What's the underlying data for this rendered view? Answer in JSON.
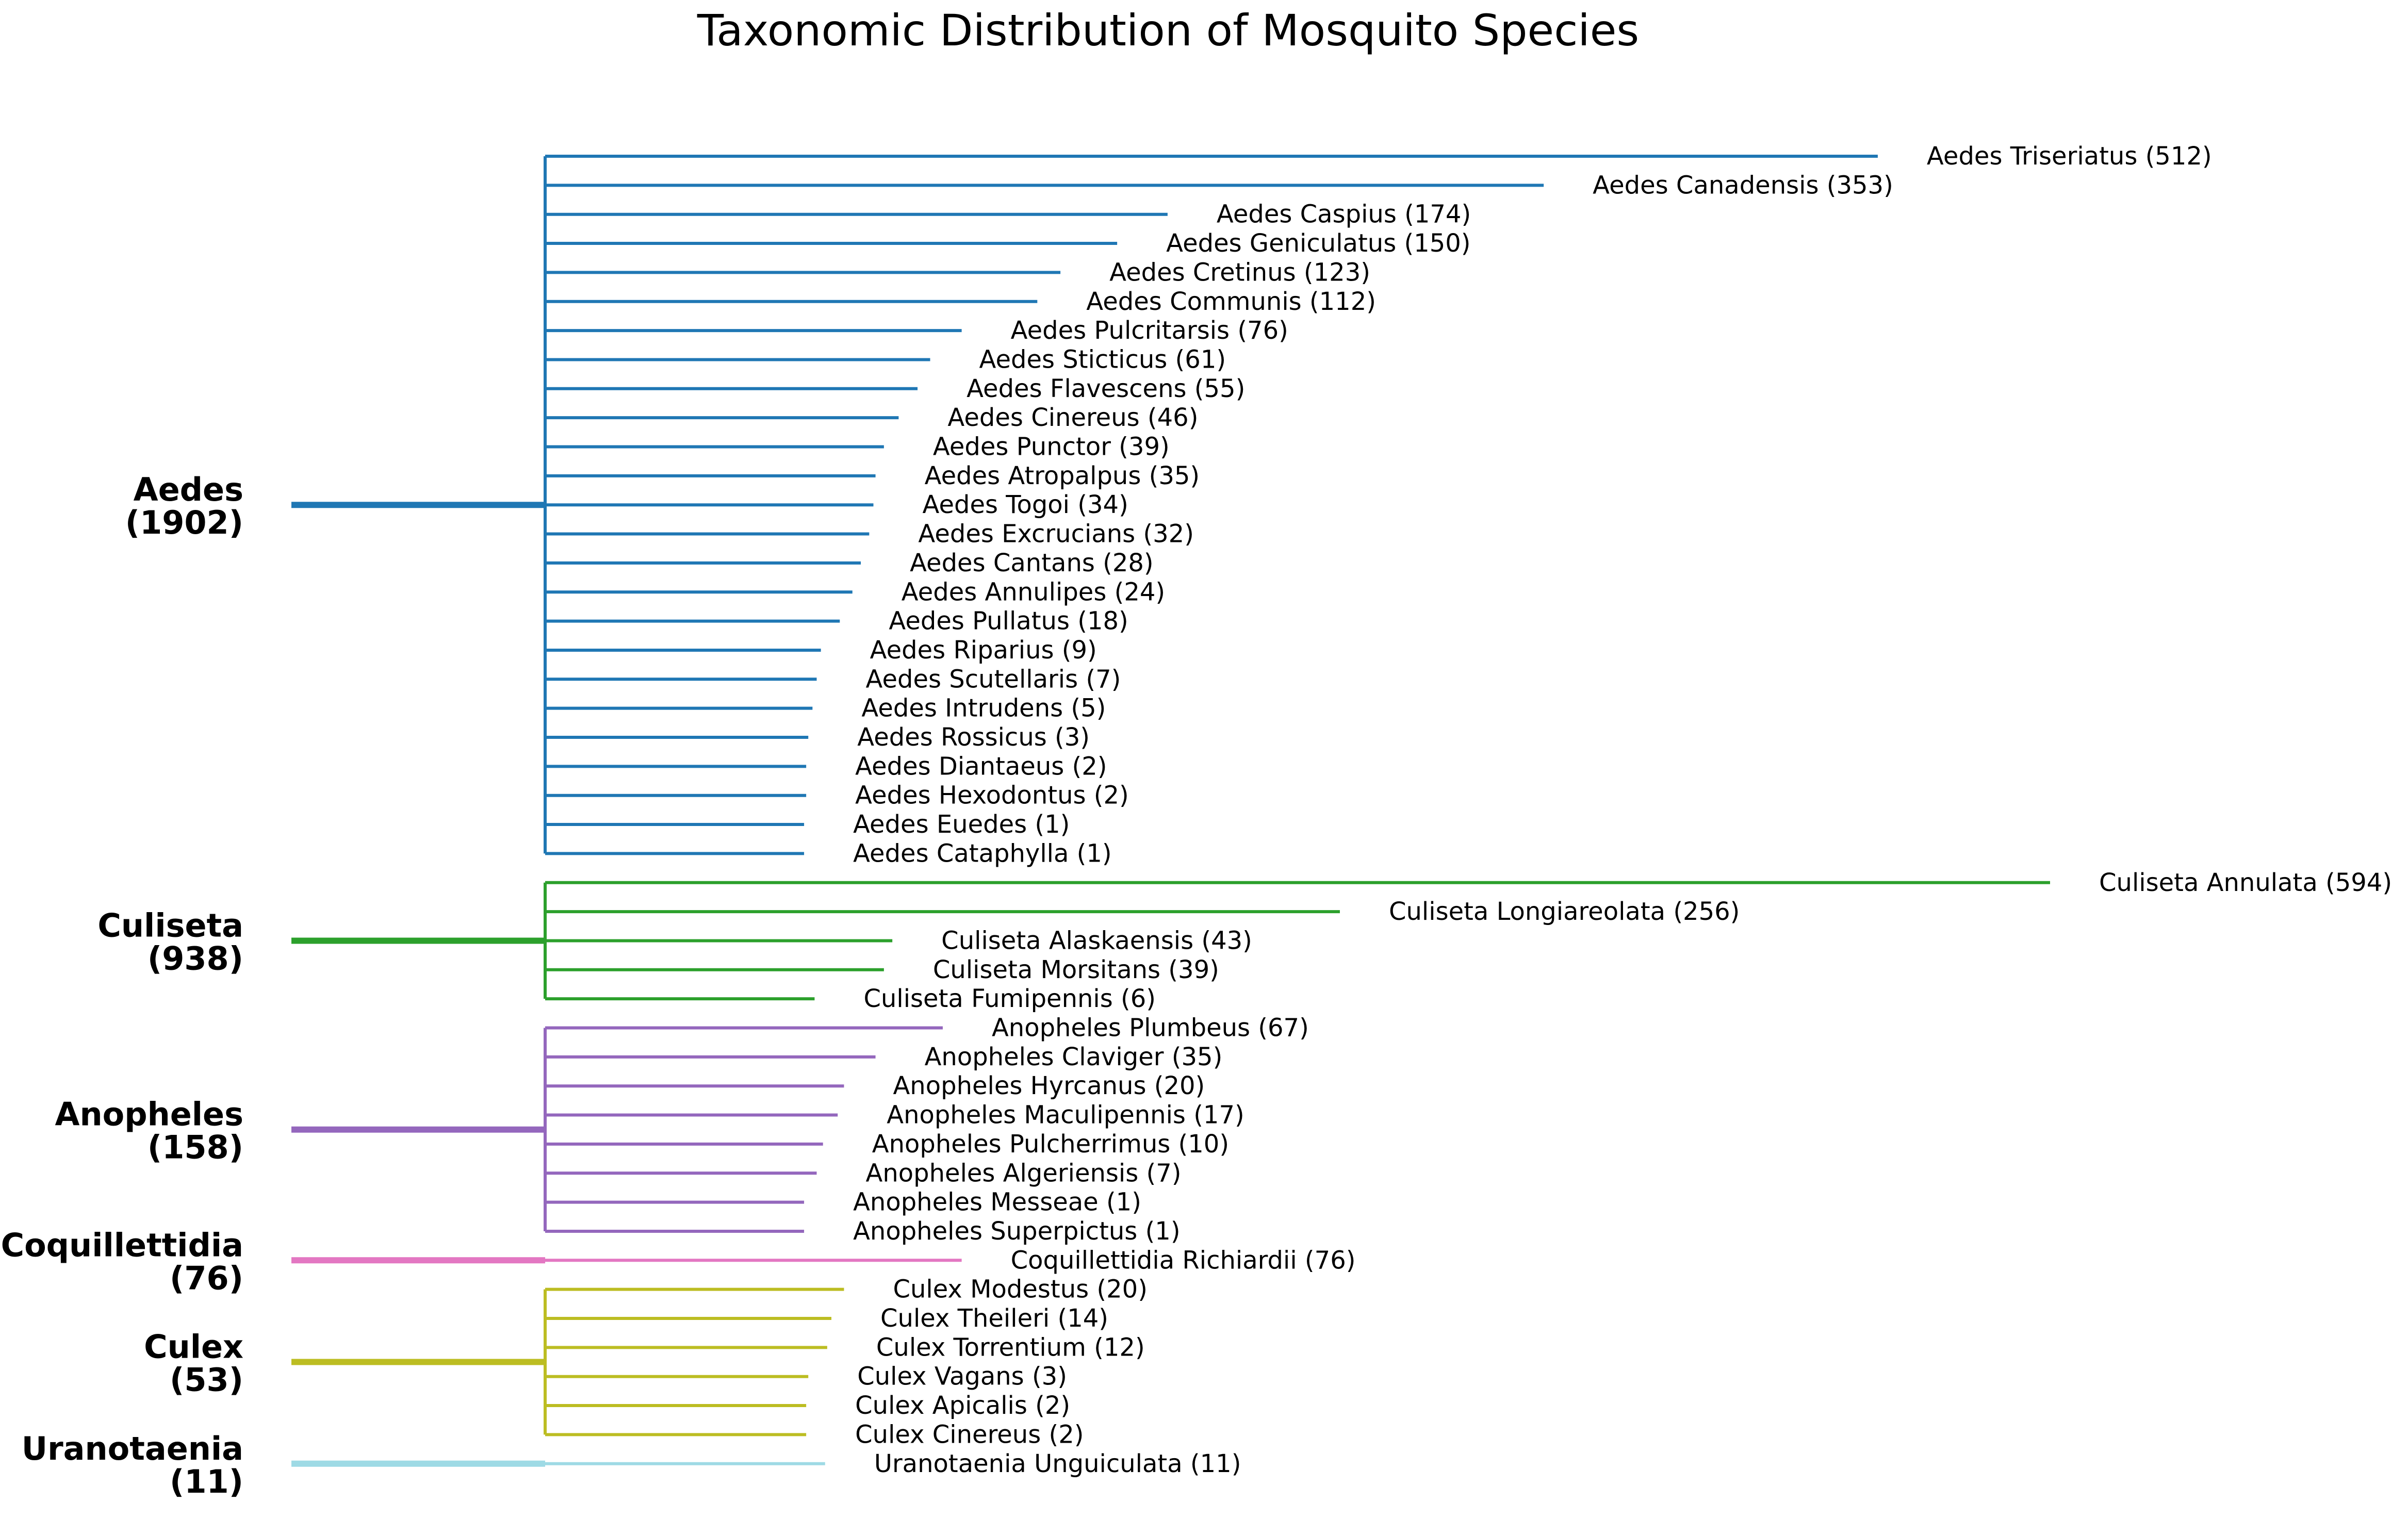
{
  "chart_data": {
    "type": "tree",
    "title": "Taxonomic Distribution of Mosquito Species",
    "genera": [
      {
        "name": "Aedes",
        "total": 1902,
        "color": "#1f77b4",
        "species": [
          {
            "name": "Aedes Triseriatus",
            "count": 512
          },
          {
            "name": "Aedes Canadensis",
            "count": 353
          },
          {
            "name": "Aedes Caspius",
            "count": 174
          },
          {
            "name": "Aedes Geniculatus",
            "count": 150
          },
          {
            "name": "Aedes Cretinus",
            "count": 123
          },
          {
            "name": "Aedes Communis",
            "count": 112
          },
          {
            "name": "Aedes Pulcritarsis",
            "count": 76
          },
          {
            "name": "Aedes Sticticus",
            "count": 61
          },
          {
            "name": "Aedes Flavescens",
            "count": 55
          },
          {
            "name": "Aedes Cinereus",
            "count": 46
          },
          {
            "name": "Aedes Punctor",
            "count": 39
          },
          {
            "name": "Aedes Atropalpus",
            "count": 35
          },
          {
            "name": "Aedes Togoi",
            "count": 34
          },
          {
            "name": "Aedes Excrucians",
            "count": 32
          },
          {
            "name": "Aedes Cantans",
            "count": 28
          },
          {
            "name": "Aedes Annulipes",
            "count": 24
          },
          {
            "name": "Aedes Pullatus",
            "count": 18
          },
          {
            "name": "Aedes Riparius",
            "count": 9
          },
          {
            "name": "Aedes Scutellaris",
            "count": 7
          },
          {
            "name": "Aedes Intrudens",
            "count": 5
          },
          {
            "name": "Aedes Rossicus",
            "count": 3
          },
          {
            "name": "Aedes Diantaeus",
            "count": 2
          },
          {
            "name": "Aedes Hexodontus",
            "count": 2
          },
          {
            "name": "Aedes Euedes",
            "count": 1
          },
          {
            "name": "Aedes Cataphylla",
            "count": 1
          }
        ]
      },
      {
        "name": "Culiseta",
        "total": 938,
        "color": "#2ca02c",
        "species": [
          {
            "name": "Culiseta Annulata",
            "count": 594
          },
          {
            "name": "Culiseta Longiareolata",
            "count": 256
          },
          {
            "name": "Culiseta Alaskaensis",
            "count": 43
          },
          {
            "name": "Culiseta Morsitans",
            "count": 39
          },
          {
            "name": "Culiseta Fumipennis",
            "count": 6
          }
        ]
      },
      {
        "name": "Anopheles",
        "total": 158,
        "color": "#9467bd",
        "species": [
          {
            "name": "Anopheles Plumbeus",
            "count": 67
          },
          {
            "name": "Anopheles Claviger",
            "count": 35
          },
          {
            "name": "Anopheles Hyrcanus",
            "count": 20
          },
          {
            "name": "Anopheles Maculipennis",
            "count": 17
          },
          {
            "name": "Anopheles Pulcherrimus",
            "count": 10
          },
          {
            "name": "Anopheles Algeriensis",
            "count": 7
          },
          {
            "name": "Anopheles Messeae",
            "count": 1
          },
          {
            "name": "Anopheles Superpictus",
            "count": 1
          }
        ]
      },
      {
        "name": "Coquillettidia",
        "total": 76,
        "color": "#e377c2",
        "species": [
          {
            "name": "Coquillettidia Richiardii",
            "count": 76
          }
        ]
      },
      {
        "name": "Culex",
        "total": 53,
        "color": "#bcbd22",
        "species": [
          {
            "name": "Culex Modestus",
            "count": 20
          },
          {
            "name": "Culex Theileri",
            "count": 14
          },
          {
            "name": "Culex Torrentium",
            "count": 12
          },
          {
            "name": "Culex Vagans",
            "count": 3
          },
          {
            "name": "Culex Apicalis",
            "count": 2
          },
          {
            "name": "Culex Cinereus",
            "count": 2
          }
        ]
      },
      {
        "name": "Uranotaenia",
        "total": 11,
        "color": "#9edae5",
        "species": [
          {
            "name": "Uranotaenia Unguiculata",
            "count": 11
          }
        ]
      }
    ]
  }
}
